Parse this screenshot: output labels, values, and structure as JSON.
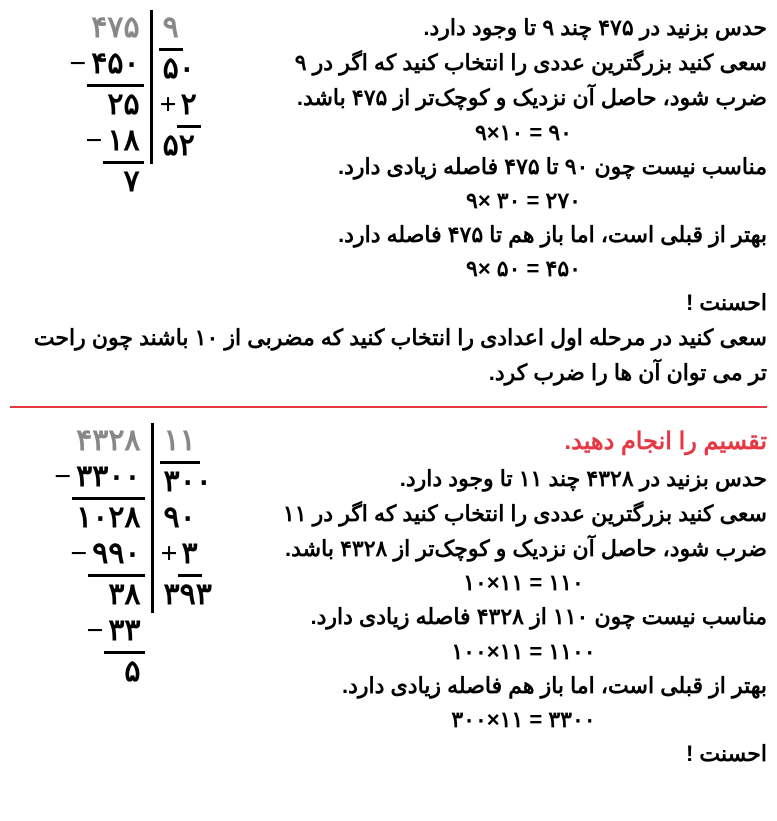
{
  "sec1": {
    "t1": "حدس بزنید در ۴۷۵ چند ۹ تا وجود دارد.",
    "t2": "سعی کنید بزرگترین عددی را انتخاب کنید که اگر در ۹ ضرب شود، حاصل آن نزدیک و کوچک‌تر از ۴۷۵ باشد.",
    "eq1": "۹×۱۰ = ۹۰",
    "t3": "مناسب نیست چون ۹۰ تا ۴۷۵ فاصله زیادی دارد.",
    "eq2": "۹× ۳۰ = ۲۷۰",
    "t4": "بهتر از قبلی است، اما باز هم تا ۴۷۵ فاصله دارد.",
    "eq3": "۹× ۵۰ = ۴۵۰",
    "t5": "احسنت !",
    "footer": "سعی کنید در مرحله اول اعدادی را انتخاب کنید که مضربی از ۱۰ باشند چون راحت تر می توان آن ها را ضرب کرد.",
    "ld": {
      "dividend": "۴۷۵",
      "divisor": "۹",
      "m1": "۴۵۰",
      "r1": "۲۵",
      "m2": "۱۸",
      "r2": "۷",
      "q1": "۵۰",
      "q2": "۲",
      "qsum": "۵۲"
    }
  },
  "sec2": {
    "title": "تقسیم را انجام دهید.",
    "t1": "حدس بزنید در ۴۳۲۸ چند ۱۱ تا وجود دارد.",
    "t2": "سعی کنید بزرگترین عددی را انتخاب کنید که اگر در ۱۱ ضرب شود، حاصل آن نزدیک و کوچک‌تر از ۴۳۲۸ باشد.",
    "eq1": "۱۰×۱۱ = ۱۱۰",
    "t3": "مناسب نیست چون ۱۱۰ از ۴۳۲۸ فاصله زیادی دارد.",
    "eq2": "۱۰۰×۱۱ = ۱۱۰۰",
    "t4": "بهتر از قبلی است، اما باز هم فاصله زیادی دارد.",
    "eq3": "۳۰۰×۱۱ = ۳۳۰۰",
    "t5": "احسنت !",
    "ld": {
      "dividend": "۴۳۲۸",
      "divisor": "۱۱",
      "m1": "۳۳۰۰",
      "r1": "۱۰۲۸",
      "m2": "۹۹۰",
      "r2": "۳۸",
      "m3": "۳۳",
      "r3": "۵",
      "q1": "۳۰۰",
      "q2": "۹۰",
      "q3": "۳",
      "qsum": "۳۹۳"
    }
  }
}
